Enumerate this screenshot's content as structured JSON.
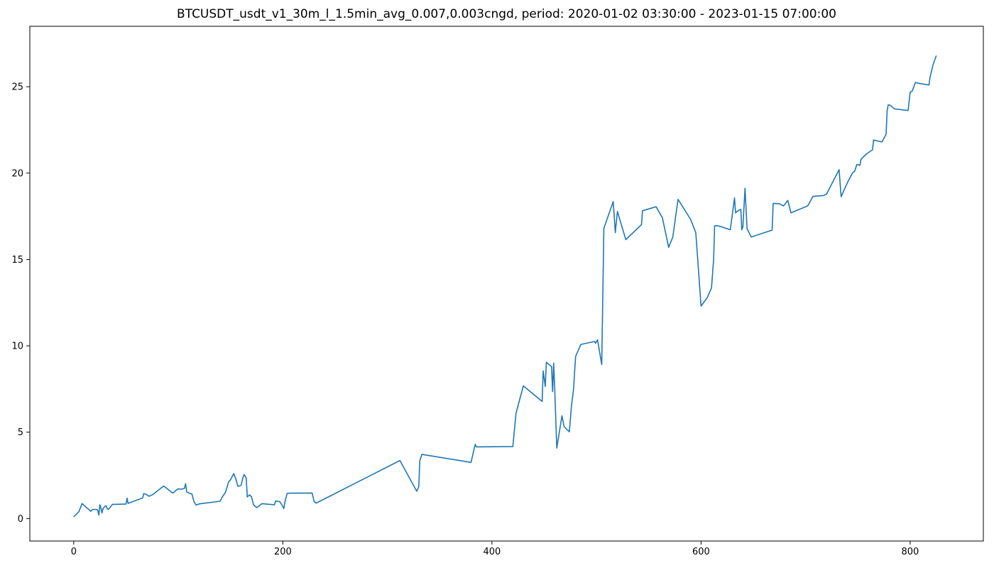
{
  "chart_data": {
    "type": "line",
    "title": "BTCUSDT_usdt_v1_30m_l_1.5min_avg_0.007,0.003cngd, period: 2020-01-02 03:30:00 - 2023-01-15 07:00:00",
    "xlabel": "",
    "ylabel": "",
    "xlim": [
      -42,
      870
    ],
    "ylim": [
      -1.3,
      28.5
    ],
    "xticks": [
      0,
      200,
      400,
      600,
      800
    ],
    "xtick_labels": [
      "0",
      "200",
      "400",
      "600",
      "800"
    ],
    "yticks": [
      0,
      5,
      10,
      15,
      20,
      25
    ],
    "ytick_labels": [
      "0",
      "5",
      "10",
      "15",
      "20",
      "25"
    ],
    "grid": false,
    "colors": {
      "line": "#1f77b4",
      "axis": "#000000"
    },
    "series": [
      {
        "x": [
          0,
          5,
          8,
          12,
          15,
          16,
          18,
          20,
          22,
          23,
          24,
          25,
          26,
          27,
          28,
          30,
          31,
          32,
          33,
          35,
          37,
          50,
          51,
          52,
          60,
          66,
          67,
          70,
          72,
          76,
          80,
          86,
          88,
          94,
          95,
          98,
          100,
          103,
          105,
          106,
          107,
          108,
          110,
          113,
          115,
          117,
          119,
          120,
          140,
          142,
          145,
          148,
          150,
          153,
          155,
          157,
          160,
          162,
          163,
          165,
          166,
          168,
          170,
          172,
          175,
          180,
          192,
          193,
          197,
          199,
          201,
          202,
          204,
          207,
          228,
          230,
          232,
          312,
          328,
          330,
          331,
          333,
          380,
          384,
          385,
          420,
          423,
          430,
          448,
          449,
          451,
          452,
          457,
          458,
          459,
          460,
          462,
          467,
          469,
          474,
          476,
          478,
          480,
          485,
          498,
          499,
          501,
          505,
          507,
          516,
          518,
          520,
          528,
          543,
          544,
          557,
          563,
          569,
          573,
          578,
          590,
          595,
          600,
          606,
          610,
          612,
          613,
          615,
          618,
          628,
          632,
          633,
          636,
          638,
          639,
          640,
          642,
          644,
          648,
          668,
          669,
          675,
          679,
          683,
          686,
          702,
          707,
          717,
          720,
          732,
          734,
          740,
          745,
          747,
          749,
          752,
          753,
          758,
          764,
          765,
          773,
          777,
          778,
          779,
          781,
          785,
          798,
          800,
          802,
          805,
          808,
          818,
          819,
          822,
          825
        ],
        "y": [
          0.1,
          0.4,
          0.87,
          0.65,
          0.5,
          0.42,
          0.52,
          0.53,
          0.52,
          0.48,
          0.2,
          0.8,
          0.62,
          0.32,
          0.58,
          0.72,
          0.74,
          0.58,
          0.52,
          0.66,
          0.82,
          0.84,
          1.18,
          0.88,
          1.06,
          1.2,
          1.45,
          1.38,
          1.29,
          1.4,
          1.6,
          1.88,
          1.8,
          1.5,
          1.48,
          1.65,
          1.72,
          1.7,
          1.73,
          1.76,
          2.02,
          1.55,
          1.48,
          1.42,
          0.98,
          0.78,
          0.82,
          0.85,
          1.0,
          1.25,
          1.5,
          2.1,
          2.25,
          2.6,
          2.3,
          1.87,
          1.92,
          2.4,
          2.55,
          2.35,
          1.25,
          1.37,
          1.27,
          0.8,
          0.63,
          0.86,
          0.8,
          1.02,
          0.98,
          0.8,
          0.58,
          0.95,
          1.45,
          1.47,
          1.48,
          0.97,
          0.9,
          3.36,
          1.58,
          1.85,
          3.35,
          3.72,
          3.25,
          4.3,
          4.15,
          4.17,
          6.1,
          7.68,
          6.78,
          8.55,
          7.65,
          9.05,
          8.8,
          7.35,
          9.0,
          7.6,
          4.08,
          5.95,
          5.32,
          5.02,
          6.5,
          7.45,
          9.38,
          10.08,
          10.25,
          10.15,
          10.35,
          8.92,
          16.8,
          18.35,
          16.55,
          17.78,
          16.15,
          17.02,
          17.82,
          18.05,
          17.42,
          15.7,
          16.3,
          18.48,
          17.32,
          16.55,
          12.3,
          12.8,
          13.35,
          15.0,
          16.95,
          16.96,
          16.92,
          16.72,
          18.56,
          17.7,
          17.85,
          17.9,
          16.72,
          16.88,
          19.12,
          16.78,
          16.3,
          16.7,
          18.25,
          18.22,
          18.1,
          18.42,
          17.7,
          18.1,
          18.65,
          18.7,
          18.78,
          20.2,
          18.63,
          19.45,
          20.02,
          20.12,
          20.5,
          20.45,
          20.8,
          21.1,
          21.35,
          21.92,
          21.8,
          22.25,
          23.6,
          23.95,
          23.92,
          23.72,
          23.62,
          24.68,
          24.75,
          25.25,
          25.2,
          25.1,
          25.55,
          26.3,
          26.8
        ]
      }
    ]
  }
}
